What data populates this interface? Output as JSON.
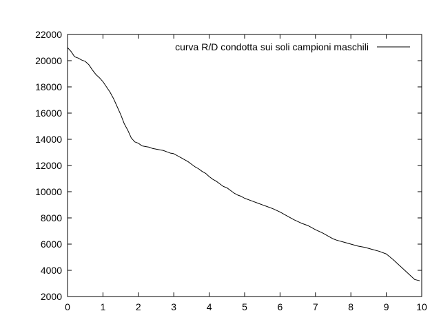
{
  "chart_data": {
    "type": "line",
    "title": "",
    "xlabel": "",
    "ylabel": "",
    "xlim": [
      0,
      10
    ],
    "ylim": [
      2000,
      22000
    ],
    "x_ticks": [
      0,
      1,
      2,
      3,
      4,
      5,
      6,
      7,
      8,
      9,
      10
    ],
    "x_tick_labels": [
      "0",
      "1",
      "2",
      "3",
      "4",
      "5",
      "6",
      "7",
      "8",
      "9",
      "10"
    ],
    "y_ticks": [
      2000,
      4000,
      6000,
      8000,
      10000,
      12000,
      14000,
      16000,
      18000,
      20000,
      22000
    ],
    "y_tick_labels": [
      "2000",
      "4000",
      "6000",
      "8000",
      "10000",
      "12000",
      "14000",
      "16000",
      "18000",
      "20000",
      "22000"
    ],
    "grid": false,
    "legend_position": "top-right",
    "series": [
      {
        "name": "curva R/D condotta sui soli campioni maschili",
        "color": "#000000",
        "x": [
          0,
          0.1,
          0.2,
          0.3,
          0.4,
          0.5,
          0.6,
          0.7,
          0.8,
          0.9,
          1.0,
          1.1,
          1.2,
          1.3,
          1.4,
          1.5,
          1.6,
          1.7,
          1.8,
          1.9,
          2.0,
          2.1,
          2.2,
          2.3,
          2.4,
          2.5,
          2.6,
          2.7,
          2.8,
          2.9,
          3.0,
          3.1,
          3.2,
          3.3,
          3.4,
          3.5,
          3.6,
          3.7,
          3.8,
          3.9,
          4.0,
          4.1,
          4.2,
          4.3,
          4.4,
          4.5,
          4.6,
          4.7,
          4.8,
          4.9,
          5.0,
          5.2,
          5.4,
          5.6,
          5.8,
          6.0,
          6.2,
          6.4,
          6.6,
          6.8,
          7.0,
          7.2,
          7.4,
          7.5,
          7.6,
          7.8,
          8.0,
          8.2,
          8.4,
          8.6,
          8.8,
          9.0,
          9.2,
          9.4,
          9.6,
          9.8,
          9.95
        ],
        "y": [
          21000,
          20700,
          20300,
          20200,
          20050,
          19950,
          19700,
          19300,
          18950,
          18700,
          18400,
          18000,
          17600,
          17100,
          16500,
          15900,
          15200,
          14700,
          14100,
          13800,
          13700,
          13500,
          13450,
          13400,
          13300,
          13250,
          13200,
          13150,
          13050,
          12950,
          12900,
          12750,
          12600,
          12450,
          12300,
          12100,
          11900,
          11750,
          11550,
          11400,
          11150,
          10950,
          10800,
          10600,
          10400,
          10300,
          10100,
          9900,
          9750,
          9650,
          9500,
          9300,
          9100,
          8900,
          8700,
          8450,
          8150,
          7850,
          7600,
          7400,
          7100,
          6850,
          6550,
          6400,
          6300,
          6150,
          6000,
          5850,
          5750,
          5600,
          5450,
          5250,
          4800,
          4300,
          3800,
          3300,
          3200
        ]
      }
    ]
  }
}
